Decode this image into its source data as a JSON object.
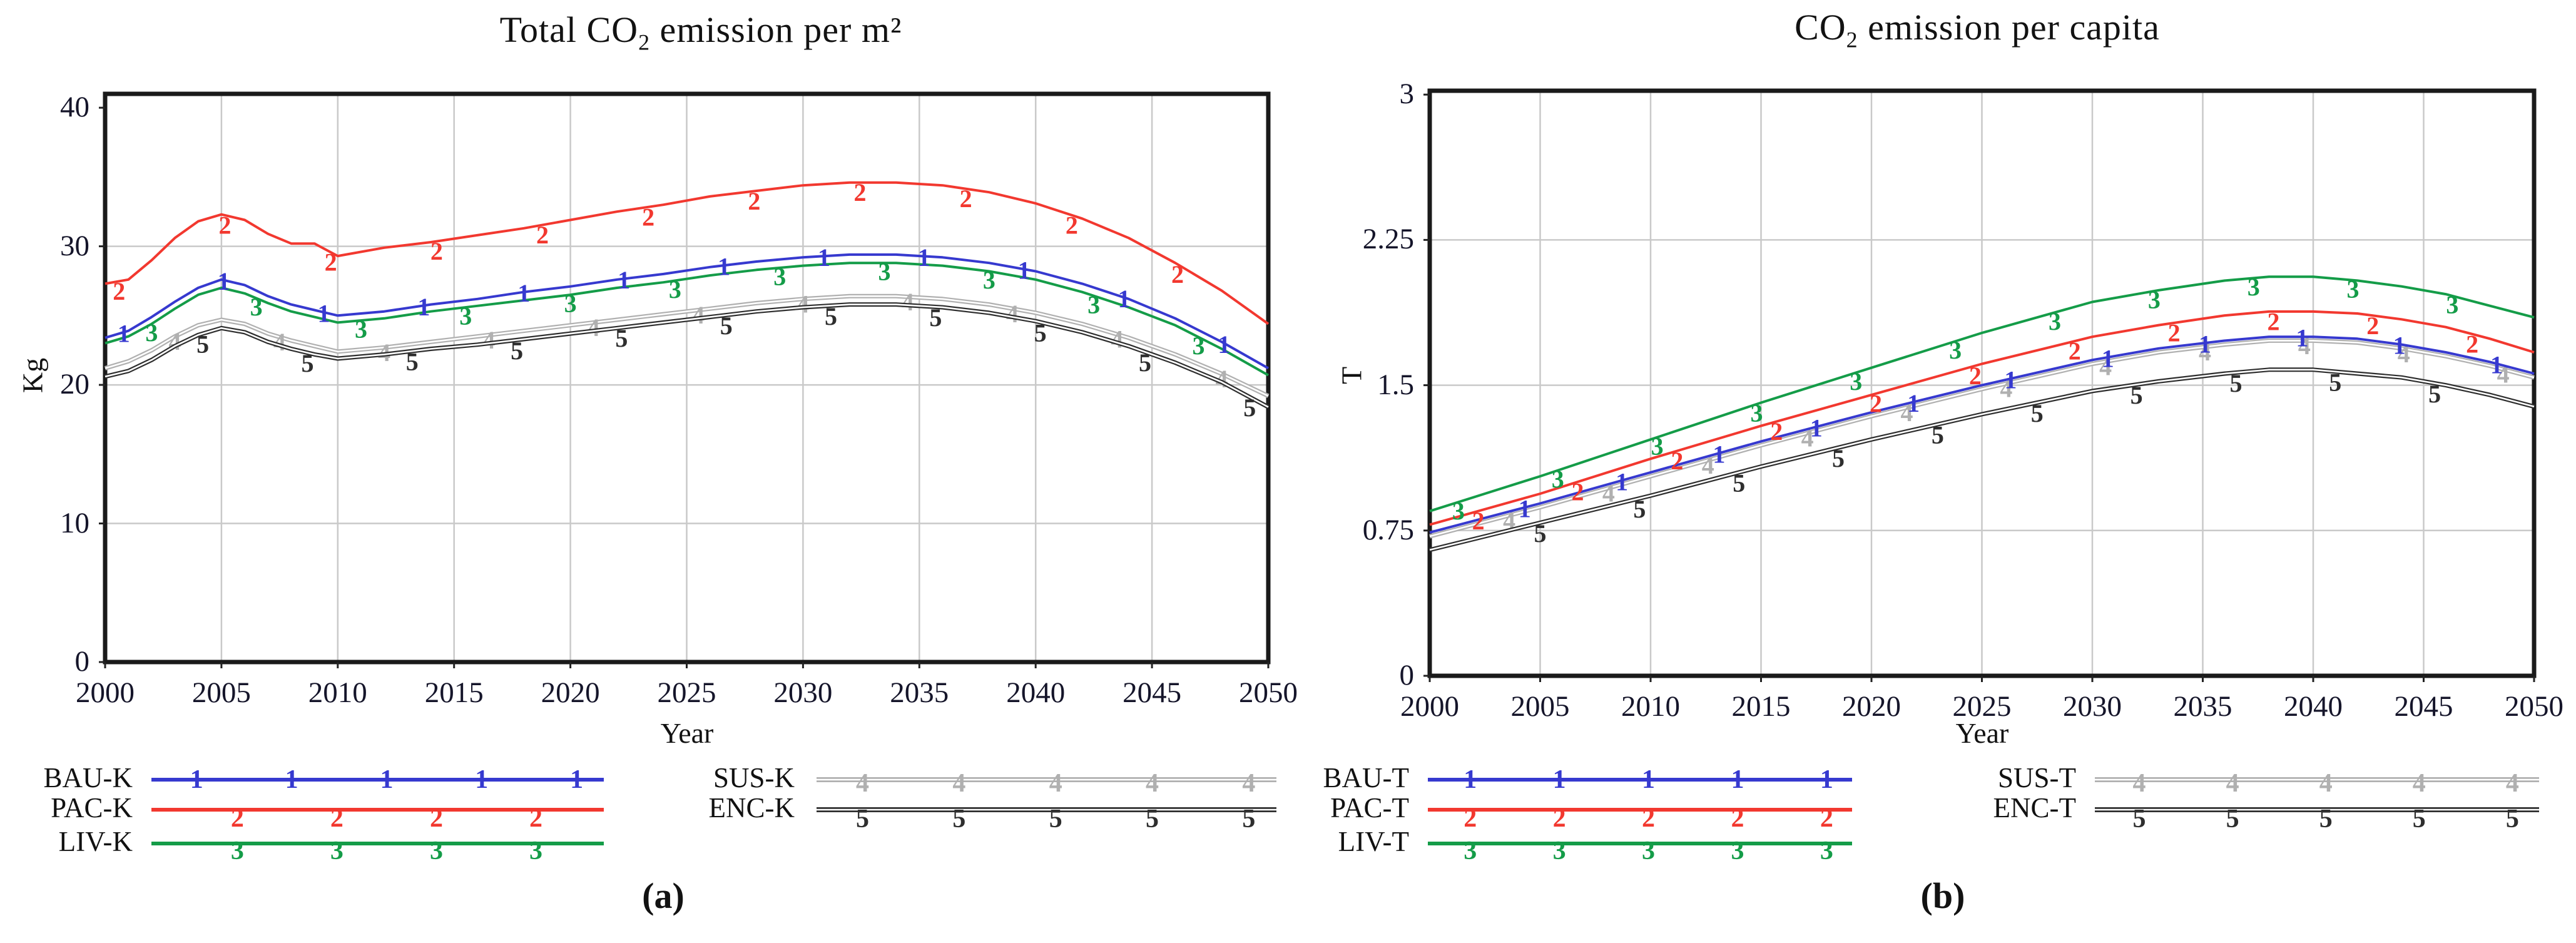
{
  "figure": {
    "caption_a": "(a)",
    "caption_b": "(b)",
    "colors": {
      "blue": "#3639cf",
      "red": "#f2382f",
      "green": "#149c48",
      "gray": "#b0b0b0",
      "black": "#2e2e2e",
      "grid": "#c9c9c9",
      "frame": "#1a1a1a"
    }
  },
  "chart_data": [
    {
      "type": "line",
      "title_pre": "Total CO",
      "title_sub": "2",
      "title_post": " emission per m²",
      "ylabel": "Kg",
      "xlabel": "Year",
      "caption": "(a)",
      "x_ticks": [
        "2000",
        "2005",
        "2010",
        "2015",
        "2020",
        "2025",
        "2030",
        "2035",
        "2040",
        "2045",
        "2050"
      ],
      "y_ticks": [
        "0",
        "10",
        "20",
        "30",
        "40"
      ],
      "ylim": [
        0,
        40
      ],
      "x_range": [
        2000,
        2050
      ],
      "grid": true,
      "legend_position": "below",
      "x": [
        2000,
        2001,
        2002,
        2003,
        2004,
        2005,
        2006,
        2007,
        2008,
        2009,
        2010,
        2012,
        2014,
        2016,
        2018,
        2020,
        2022,
        2024,
        2026,
        2028,
        2030,
        2032,
        2034,
        2036,
        2038,
        2040,
        2042,
        2044,
        2046,
        2048,
        2050
      ],
      "series": [
        {
          "name": "SUS-K",
          "marker": "4",
          "color": "#b0b0b0",
          "double": true,
          "marker_phase": 2003.0,
          "marker_interval": 4.5,
          "values": [
            21.2,
            21.7,
            22.5,
            23.5,
            24.3,
            24.7,
            24.4,
            23.7,
            23.2,
            22.8,
            22.4,
            22.7,
            23.1,
            23.5,
            23.9,
            24.3,
            24.7,
            25.1,
            25.5,
            25.9,
            26.2,
            26.4,
            26.4,
            26.2,
            25.8,
            25.2,
            24.4,
            23.4,
            22.2,
            20.8,
            19.2
          ]
        },
        {
          "name": "ENC-K",
          "marker": "5",
          "color": "#2e2e2e",
          "double": true,
          "marker_phase": 2004.2,
          "marker_interval": 4.5,
          "values": [
            20.6,
            21.0,
            21.8,
            22.8,
            23.6,
            24.1,
            23.8,
            23.1,
            22.6,
            22.2,
            21.9,
            22.2,
            22.6,
            22.9,
            23.3,
            23.7,
            24.1,
            24.5,
            24.9,
            25.3,
            25.6,
            25.8,
            25.8,
            25.6,
            25.2,
            24.6,
            23.8,
            22.8,
            21.6,
            20.2,
            18.4
          ]
        },
        {
          "name": "LIV-K",
          "marker": "3",
          "color": "#149c48",
          "double": false,
          "marker_phase": 2002.0,
          "marker_interval": 4.5,
          "values": [
            23.0,
            23.5,
            24.4,
            25.5,
            26.5,
            27.0,
            26.6,
            25.9,
            25.3,
            24.9,
            24.5,
            24.8,
            25.3,
            25.7,
            26.1,
            26.5,
            27.0,
            27.4,
            27.9,
            28.3,
            28.6,
            28.8,
            28.8,
            28.6,
            28.2,
            27.6,
            26.7,
            25.6,
            24.3,
            22.6,
            20.7
          ]
        },
        {
          "name": "BAU-K",
          "marker": "1",
          "color": "#3639cf",
          "double": false,
          "marker_phase": 2000.8,
          "marker_interval": 4.3,
          "values": [
            23.4,
            23.9,
            24.9,
            26.0,
            27.0,
            27.6,
            27.2,
            26.4,
            25.8,
            25.4,
            25.0,
            25.3,
            25.8,
            26.2,
            26.7,
            27.1,
            27.6,
            28.0,
            28.5,
            28.9,
            29.2,
            29.4,
            29.4,
            29.2,
            28.8,
            28.2,
            27.3,
            26.2,
            24.8,
            23.1,
            21.2
          ]
        },
        {
          "name": "PAC-K",
          "marker": "2",
          "color": "#f2382f",
          "double": false,
          "marker_phase": 2000.6,
          "marker_interval": 4.55,
          "values": [
            27.3,
            27.6,
            29.0,
            30.6,
            31.8,
            32.3,
            31.9,
            30.9,
            30.2,
            30.2,
            29.3,
            29.9,
            30.3,
            30.8,
            31.3,
            31.9,
            32.5,
            33.0,
            33.6,
            34.0,
            34.4,
            34.6,
            34.6,
            34.4,
            33.9,
            33.1,
            32.0,
            30.6,
            28.8,
            26.8,
            24.4
          ]
        }
      ],
      "legend_columns": [
        [
          {
            "label": "BAU-K",
            "color": "#3639cf",
            "marker": "1",
            "marker_count": 5,
            "double": false
          },
          {
            "label": "PAC-K",
            "color": "#f2382f",
            "marker": "2",
            "marker_count": 4,
            "double": false
          },
          {
            "label": "LIV-K",
            "color": "#149c48",
            "marker": "3",
            "marker_count": 4,
            "double": false
          }
        ],
        [
          {
            "label": "SUS-K",
            "color": "#b0b0b0",
            "marker": "4",
            "marker_count": 5,
            "double": true
          },
          {
            "label": "ENC-K",
            "color": "#2e2e2e",
            "marker": "5",
            "marker_count": 5,
            "double": true
          }
        ]
      ]
    },
    {
      "type": "line",
      "title_pre": "CO",
      "title_sub": "2",
      "title_post": " emission per capita",
      "ylabel": "T",
      "xlabel": "Year",
      "caption": "(b)",
      "x_ticks": [
        "2000",
        "2005",
        "2010",
        "2015",
        "2020",
        "2025",
        "2030",
        "2035",
        "2040",
        "2045",
        "2050"
      ],
      "y_ticks": [
        "0",
        "0.75",
        "1.5",
        "2.25",
        "3"
      ],
      "ylim": [
        0,
        3
      ],
      "x_range": [
        2000,
        2050
      ],
      "grid": true,
      "legend_position": "below",
      "x": [
        2000,
        2005,
        2010,
        2015,
        2020,
        2025,
        2030,
        2033,
        2036,
        2038,
        2040,
        2042,
        2044,
        2046,
        2048,
        2050
      ],
      "series": [
        {
          "name": "SUS-T",
          "marker": "4",
          "color": "#b0b0b0",
          "double": true,
          "marker_phase": 2003.6,
          "marker_interval": 4.5,
          "values": [
            0.72,
            0.87,
            1.03,
            1.19,
            1.34,
            1.48,
            1.61,
            1.67,
            1.71,
            1.73,
            1.73,
            1.72,
            1.69,
            1.65,
            1.6,
            1.54
          ]
        },
        {
          "name": "ENC-T",
          "marker": "5",
          "color": "#2e2e2e",
          "double": true,
          "marker_phase": 2005.0,
          "marker_interval": 4.5,
          "values": [
            0.65,
            0.79,
            0.93,
            1.08,
            1.22,
            1.35,
            1.47,
            1.52,
            1.56,
            1.58,
            1.58,
            1.56,
            1.54,
            1.5,
            1.45,
            1.39
          ]
        },
        {
          "name": "BAU-T",
          "marker": "1",
          "color": "#3639cf",
          "double": false,
          "marker_phase": 2004.3,
          "marker_interval": 4.4,
          "values": [
            0.74,
            0.89,
            1.05,
            1.21,
            1.36,
            1.5,
            1.63,
            1.69,
            1.73,
            1.75,
            1.75,
            1.74,
            1.71,
            1.67,
            1.62,
            1.56
          ]
        },
        {
          "name": "PAC-T",
          "marker": "2",
          "color": "#f2382f",
          "double": false,
          "marker_phase": 2002.2,
          "marker_interval": 4.5,
          "values": [
            0.78,
            0.94,
            1.12,
            1.29,
            1.45,
            1.61,
            1.75,
            1.81,
            1.86,
            1.88,
            1.88,
            1.87,
            1.84,
            1.8,
            1.74,
            1.67
          ]
        },
        {
          "name": "LIV-T",
          "marker": "3",
          "color": "#149c48",
          "double": false,
          "marker_phase": 2001.3,
          "marker_interval": 4.5,
          "values": [
            0.85,
            1.03,
            1.22,
            1.41,
            1.59,
            1.77,
            1.93,
            1.99,
            2.04,
            2.06,
            2.06,
            2.04,
            2.01,
            1.97,
            1.91,
            1.85
          ]
        }
      ],
      "legend_columns": [
        [
          {
            "label": "BAU-T",
            "color": "#3639cf",
            "marker": "1",
            "marker_count": 5,
            "double": false
          },
          {
            "label": "PAC-T",
            "color": "#f2382f",
            "marker": "2",
            "marker_count": 5,
            "double": false
          },
          {
            "label": "LIV-T",
            "color": "#149c48",
            "marker": "3",
            "marker_count": 5,
            "double": false
          }
        ],
        [
          {
            "label": "SUS-T",
            "color": "#b0b0b0",
            "marker": "4",
            "marker_count": 5,
            "double": true
          },
          {
            "label": "ENC-T",
            "color": "#2e2e2e",
            "marker": "5",
            "marker_count": 5,
            "double": true
          }
        ]
      ]
    }
  ]
}
